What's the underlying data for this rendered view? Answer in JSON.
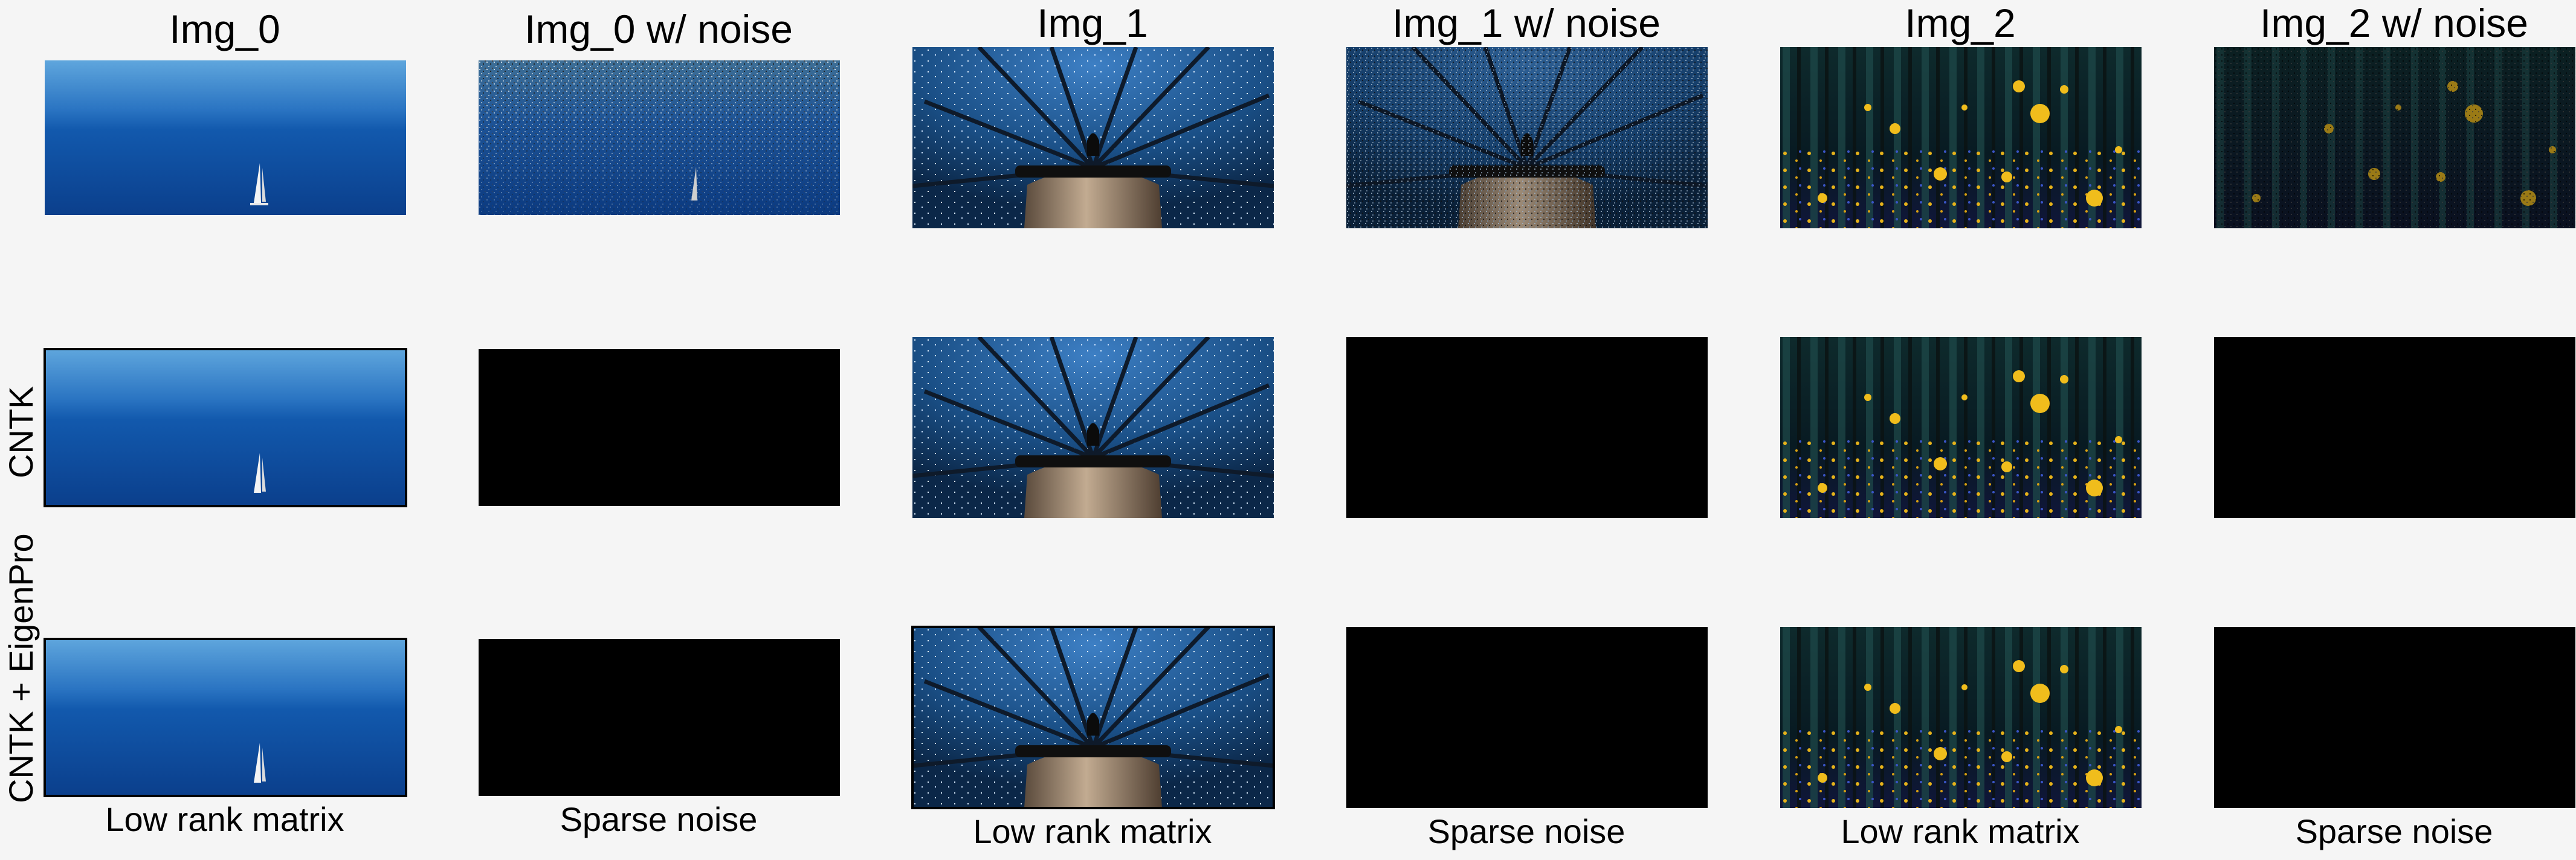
{
  "column_titles": [
    "Img_0",
    "Img_0 w/ noise",
    "Img_1",
    "Img_1 w/ noise",
    "Img_2",
    "Img_2 w/ noise"
  ],
  "row_labels": [
    "CNTK",
    "CNTK + EigenPro"
  ],
  "captions": [
    "Low rank matrix",
    "Sparse noise",
    "Low rank matrix",
    "Sparse noise",
    "Low rank matrix",
    "Sparse noise"
  ],
  "panels": {
    "img_0": "sea-sailboat-photo",
    "img_1": "lighthouse-night-sky-photo",
    "img_2": "firefly-forest-photo",
    "sparse_noise": "black-output-image"
  }
}
